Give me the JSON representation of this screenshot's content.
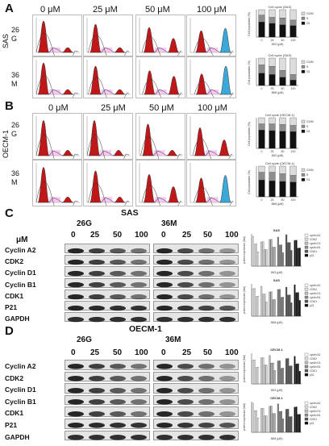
{
  "panelA": {
    "letter": "A",
    "cell_line": "SAS",
    "concentrations": [
      "0 μM",
      "25 μM",
      "50 μM",
      "100 μM"
    ],
    "rows": [
      {
        "line1": "26",
        "line2": "G"
      },
      {
        "line1": "36",
        "line2": "M"
      }
    ],
    "charts": [
      {
        "title": "Cell cycle (SAS)",
        "ylabel": "Cell population (%)",
        "xlabel": "26G (μM)",
        "ticks": [
          "0",
          "25",
          "50",
          "100"
        ],
        "legend": [
          "G2/M",
          "S",
          "G1"
        ]
      },
      {
        "title": "Cell cycle (SAS)",
        "ylabel": "Cell population (%)",
        "xlabel": "36M (μM)",
        "ticks": [
          "0",
          "25",
          "50",
          "100"
        ],
        "legend": [
          "G2/M",
          "S",
          "G1"
        ]
      }
    ]
  },
  "panelB": {
    "letter": "B",
    "cell_line": "OECM-1",
    "concentrations": [
      "0 μM",
      "25 μM",
      "50 μM",
      "100 μM"
    ],
    "rows": [
      {
        "line1": "26",
        "line2": "G"
      },
      {
        "line1": "36",
        "line2": "M"
      }
    ],
    "charts": [
      {
        "title": "Cell cycle (OECM-1)",
        "ylabel": "Cell population (%)",
        "xlabel": "26G (μM)",
        "ticks": [
          "0",
          "25",
          "50",
          "100"
        ],
        "legend": [
          "G2/M",
          "S",
          "G1"
        ]
      },
      {
        "title": "Cell cycle (OECM-1)",
        "ylabel": "Cell population (%)",
        "xlabel": "36M (μM)",
        "ticks": [
          "0",
          "25",
          "50",
          "100"
        ],
        "legend": [
          "G2/M",
          "S",
          "G1"
        ]
      }
    ]
  },
  "panelC": {
    "letter": "C",
    "cell_line": "SAS",
    "unit": "μM",
    "groups": [
      "26G",
      "36M"
    ],
    "concs": [
      "0",
      "25",
      "50",
      "100"
    ],
    "proteins": [
      "Cyclin A2",
      "CDK2",
      "Cyclin D1",
      "Cyclin B1",
      "CDK1",
      "P21",
      "GAPDH"
    ],
    "charts": [
      {
        "title": "SAS",
        "ylabel": "protein expression (fold)",
        "xlabel": "26G (μM)",
        "legend": [
          "cyclin A2",
          "CDK2",
          "cyclin D1",
          "cyclin B1",
          "CDK1",
          "p21"
        ]
      },
      {
        "title": "SAS",
        "ylabel": "protein expression (fold)",
        "xlabel": "36M (μM)",
        "legend": [
          "cyclin A2",
          "CDK2",
          "cyclin D1",
          "cyclin B1",
          "CDK1",
          "p21"
        ]
      }
    ]
  },
  "panelD": {
    "letter": "D",
    "cell_line": "OECM-1",
    "groups": [
      "26G",
      "36M"
    ],
    "concs": [
      "0",
      "25",
      "50",
      "100"
    ],
    "proteins": [
      "Cyclin A2",
      "CDK2",
      "Cyclin D1",
      "Cyclin B1",
      "CDK1",
      "P21",
      "GAPDH"
    ],
    "charts": [
      {
        "title": "OECM-1",
        "ylabel": "protein expression (fold)",
        "xlabel": "26G (μM)",
        "legend": [
          "cyclin A2",
          "CDK2",
          "cyclin D1",
          "cyclin B1",
          "CDK1",
          "p21"
        ]
      },
      {
        "title": "OECM-1",
        "ylabel": "protein expression (fold)",
        "xlabel": "36M (μM)",
        "legend": [
          "cyclin A2",
          "CDK2",
          "cyclin D1",
          "cyclin B1",
          "CDK1",
          "p21"
        ]
      }
    ]
  },
  "colors": {
    "g1": "#111111",
    "s": "#8c8c8c",
    "g2m": "#dcdcdc",
    "histo_red": "#c01818",
    "histo_blue": "#3aa8d8",
    "histo_pink": "#e46fb4"
  }
}
